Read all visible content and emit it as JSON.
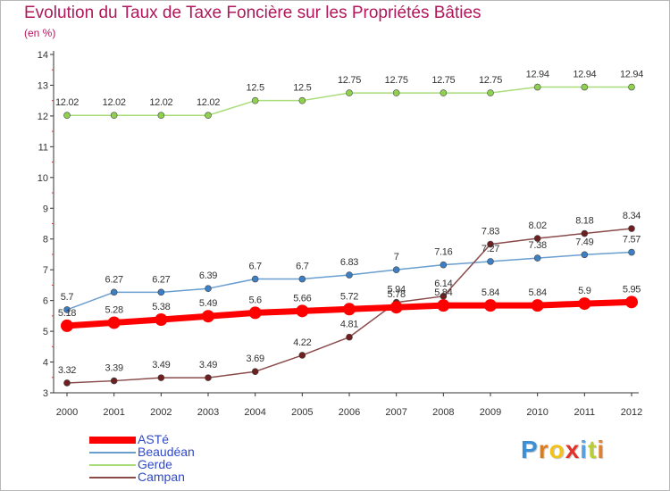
{
  "title": "Evolution du Taux de Taxe Foncière sur les Propriétés Bâties",
  "unit_label": "(en %)",
  "brand": {
    "text": "Proxiti",
    "letter_colors": [
      "#3a8fd6",
      "#e07b18",
      "#f2c21a",
      "#e2332b",
      "#5aa0df",
      "#b8cf2e",
      "#e47f2a"
    ]
  },
  "chart_data": {
    "type": "line",
    "title": "Evolution du Taux de Taxe Foncière sur les Propriétés Bâties",
    "ylabel": "(en %)",
    "xlabel": "",
    "x": [
      "2000",
      "2001",
      "2002",
      "2003",
      "2004",
      "2005",
      "2006",
      "2007",
      "2008",
      "2009",
      "2010",
      "2011",
      "2012"
    ],
    "ylim": [
      3,
      14
    ],
    "yticks": [
      "3",
      "4",
      "5",
      "6",
      "7",
      "8",
      "9",
      "10",
      "11",
      "12",
      "13",
      "14"
    ],
    "grid": false,
    "legend_position": "bottom-left",
    "series": [
      {
        "name": "ASTé",
        "color": "#ff0000",
        "line_width": 7,
        "marker_color": "#ff0000",
        "marker_size": 7,
        "values": [
          5.18,
          5.28,
          5.38,
          5.49,
          5.6,
          5.66,
          5.72,
          5.78,
          5.84,
          5.84,
          5.84,
          5.9,
          5.95
        ],
        "labels": [
          "5.18",
          "5.28",
          "5.38",
          "5.49",
          "5.6",
          "5.66",
          "5.72",
          "5.78",
          "5.84",
          "5.84",
          "5.84",
          "5.9",
          "5.95"
        ]
      },
      {
        "name": "Beaudéan",
        "color": "#6a9ecf",
        "line_width": 1.5,
        "marker_color": "#3d7fc4",
        "marker_size": 3.5,
        "values": [
          5.7,
          6.27,
          6.27,
          6.39,
          6.7,
          6.7,
          6.83,
          7,
          7.16,
          7.27,
          7.38,
          7.49,
          7.57
        ],
        "labels": [
          "5.7",
          "6.27",
          "6.27",
          "6.39",
          "6.7",
          "6.7",
          "6.83",
          "7",
          "7.16",
          "7.27",
          "7.38",
          "7.49",
          "7.57"
        ]
      },
      {
        "name": "Gerde",
        "color": "#a8dc78",
        "line_width": 1.5,
        "marker_color": "#8fd14f",
        "marker_size": 3.5,
        "values": [
          12.02,
          12.02,
          12.02,
          12.02,
          12.5,
          12.5,
          12.75,
          12.75,
          12.75,
          12.75,
          12.94,
          12.94,
          12.94
        ],
        "labels": [
          "12.02",
          "12.02",
          "12.02",
          "12.02",
          "12.5",
          "12.5",
          "12.75",
          "12.75",
          "12.75",
          "12.75",
          "12.94",
          "12.94",
          "12.94"
        ]
      },
      {
        "name": "Campan",
        "color": "#8a4a4a",
        "line_width": 1.5,
        "marker_color": "#6e1f1f",
        "marker_size": 3.5,
        "values": [
          3.32,
          3.39,
          3.49,
          3.49,
          3.69,
          4.22,
          4.81,
          5.94,
          6.14,
          7.83,
          8.02,
          8.18,
          8.34
        ],
        "labels": [
          "3.32",
          "3.39",
          "3.49",
          "3.49",
          "3.69",
          "4.22",
          "4.81",
          "5.94",
          "6.14",
          "7.83",
          "8.02",
          "8.18",
          "8.34"
        ]
      }
    ]
  }
}
